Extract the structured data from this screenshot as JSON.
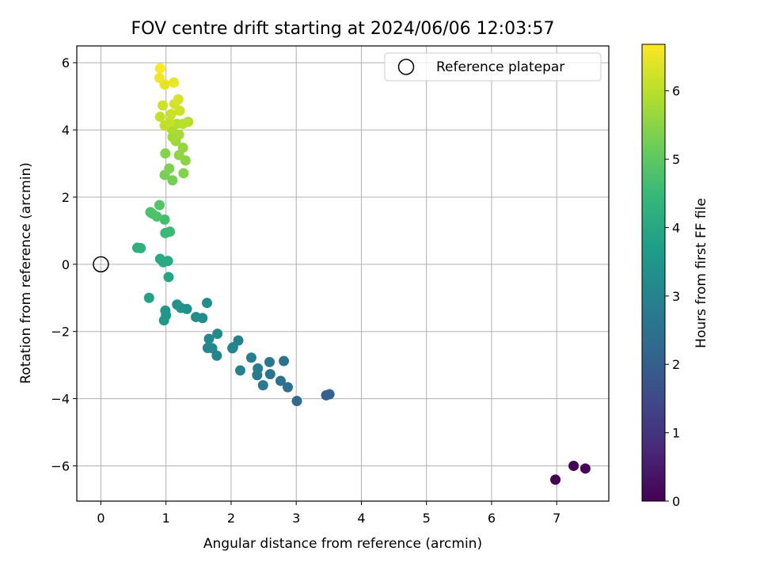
{
  "chart_data": {
    "type": "scatter",
    "title": "FOV centre drift starting at 2024/06/06 12:03:57",
    "xlabel": "Angular distance from reference (arcmin)",
    "ylabel": "Rotation from reference (arcmin)",
    "xlim": [
      -0.37,
      7.8
    ],
    "ylim": [
      -7.05,
      6.5
    ],
    "xticks": [
      0,
      1,
      2,
      3,
      4,
      5,
      6,
      7
    ],
    "yticks": [
      -6,
      -4,
      -2,
      0,
      2,
      4,
      6
    ],
    "grid": true,
    "legend": {
      "position": "top-right",
      "entries": [
        "Reference platepar"
      ]
    },
    "reference_point": {
      "x": 0,
      "y": 0,
      "label": "Reference platepar"
    },
    "colorbar": {
      "label": "Hours from first FF file",
      "colormap": "viridis",
      "range": [
        0,
        6.68
      ],
      "ticks": [
        0,
        1,
        2,
        3,
        4,
        5,
        6
      ]
    },
    "series": [
      {
        "points": [
          {
            "x": 6.98,
            "y": -6.41,
            "c": 0.0
          },
          {
            "x": 7.26,
            "y": -6.0,
            "c": 0.05
          },
          {
            "x": 7.44,
            "y": -6.08,
            "c": 0.1
          },
          {
            "x": 3.46,
            "y": -3.9,
            "c": 2.0
          },
          {
            "x": 3.51,
            "y": -3.87,
            "c": 2.05
          },
          {
            "x": 3.01,
            "y": -4.07,
            "c": 2.3
          },
          {
            "x": 2.87,
            "y": -3.66,
            "c": 2.45
          },
          {
            "x": 2.76,
            "y": -3.47,
            "c": 2.5
          },
          {
            "x": 2.81,
            "y": -2.88,
            "c": 2.55
          },
          {
            "x": 2.6,
            "y": -3.27,
            "c": 2.6
          },
          {
            "x": 2.59,
            "y": -2.91,
            "c": 2.65
          },
          {
            "x": 2.49,
            "y": -3.6,
            "c": 2.7
          },
          {
            "x": 2.4,
            "y": -3.3,
            "c": 2.75
          },
          {
            "x": 2.41,
            "y": -3.1,
            "c": 2.8
          },
          {
            "x": 2.31,
            "y": -2.78,
            "c": 2.85
          },
          {
            "x": 2.14,
            "y": -3.16,
            "c": 2.9
          },
          {
            "x": 2.11,
            "y": -2.27,
            "c": 2.95
          },
          {
            "x": 2.02,
            "y": -2.5,
            "c": 3.0
          },
          {
            "x": 2.03,
            "y": -2.47,
            "c": 3.02
          },
          {
            "x": 1.78,
            "y": -2.72,
            "c": 3.05
          },
          {
            "x": 1.71,
            "y": -2.5,
            "c": 3.1
          },
          {
            "x": 1.64,
            "y": -2.49,
            "c": 3.12
          },
          {
            "x": 1.66,
            "y": -2.22,
            "c": 3.15
          },
          {
            "x": 1.79,
            "y": -2.07,
            "c": 3.18
          },
          {
            "x": 1.56,
            "y": -1.6,
            "c": 3.22
          },
          {
            "x": 1.46,
            "y": -1.57,
            "c": 3.26
          },
          {
            "x": 1.63,
            "y": -1.15,
            "c": 3.3
          },
          {
            "x": 1.32,
            "y": -1.33,
            "c": 3.35
          },
          {
            "x": 1.23,
            "y": -1.3,
            "c": 3.38
          },
          {
            "x": 1.17,
            "y": -1.2,
            "c": 3.42
          },
          {
            "x": 0.99,
            "y": -1.38,
            "c": 3.46
          },
          {
            "x": 1.0,
            "y": -1.52,
            "c": 3.5
          },
          {
            "x": 0.97,
            "y": -1.67,
            "c": 3.54
          },
          {
            "x": 0.74,
            "y": -1.0,
            "c": 3.8
          },
          {
            "x": 1.04,
            "y": -0.38,
            "c": 3.95
          },
          {
            "x": 0.91,
            "y": 0.16,
            "c": 4.05
          },
          {
            "x": 0.96,
            "y": 0.06,
            "c": 4.08
          },
          {
            "x": 1.03,
            "y": 0.1,
            "c": 4.1
          },
          {
            "x": 0.56,
            "y": 0.49,
            "c": 4.2
          },
          {
            "x": 0.61,
            "y": 0.48,
            "c": 4.22
          },
          {
            "x": 0.99,
            "y": 0.93,
            "c": 4.5
          },
          {
            "x": 1.06,
            "y": 0.97,
            "c": 4.55
          },
          {
            "x": 0.98,
            "y": 1.33,
            "c": 4.65
          },
          {
            "x": 0.76,
            "y": 1.55,
            "c": 4.75
          },
          {
            "x": 0.79,
            "y": 1.51,
            "c": 4.78
          },
          {
            "x": 0.86,
            "y": 1.42,
            "c": 4.8
          },
          {
            "x": 0.9,
            "y": 1.76,
            "c": 4.85
          },
          {
            "x": 1.1,
            "y": 2.5,
            "c": 5.25
          },
          {
            "x": 0.98,
            "y": 2.66,
            "c": 5.3
          },
          {
            "x": 1.05,
            "y": 2.85,
            "c": 5.35
          },
          {
            "x": 1.27,
            "y": 2.71,
            "c": 5.4
          },
          {
            "x": 0.99,
            "y": 3.3,
            "c": 5.45
          },
          {
            "x": 1.3,
            "y": 3.09,
            "c": 5.5
          },
          {
            "x": 1.2,
            "y": 3.25,
            "c": 5.55
          },
          {
            "x": 1.26,
            "y": 3.47,
            "c": 5.6
          },
          {
            "x": 1.15,
            "y": 3.67,
            "c": 5.7
          },
          {
            "x": 1.1,
            "y": 3.79,
            "c": 5.75
          },
          {
            "x": 1.2,
            "y": 3.86,
            "c": 5.8
          },
          {
            "x": 1.09,
            "y": 4.02,
            "c": 5.85
          },
          {
            "x": 1.17,
            "y": 4.18,
            "c": 5.9
          },
          {
            "x": 1.34,
            "y": 4.24,
            "c": 5.95
          },
          {
            "x": 1.26,
            "y": 4.18,
            "c": 6.0
          },
          {
            "x": 0.98,
            "y": 4.13,
            "c": 6.05
          },
          {
            "x": 1.06,
            "y": 4.24,
            "c": 6.1
          },
          {
            "x": 0.91,
            "y": 4.39,
            "c": 6.1
          },
          {
            "x": 1.08,
            "y": 4.47,
            "c": 6.15
          },
          {
            "x": 1.21,
            "y": 4.57,
            "c": 6.2
          },
          {
            "x": 0.95,
            "y": 4.73,
            "c": 6.2
          },
          {
            "x": 1.13,
            "y": 4.77,
            "c": 6.25
          },
          {
            "x": 1.19,
            "y": 4.91,
            "c": 6.3
          },
          {
            "x": 0.98,
            "y": 5.35,
            "c": 6.45
          },
          {
            "x": 1.12,
            "y": 5.41,
            "c": 6.5
          },
          {
            "x": 0.9,
            "y": 5.55,
            "c": 6.55
          },
          {
            "x": 0.91,
            "y": 5.83,
            "c": 6.68
          }
        ]
      }
    ]
  }
}
